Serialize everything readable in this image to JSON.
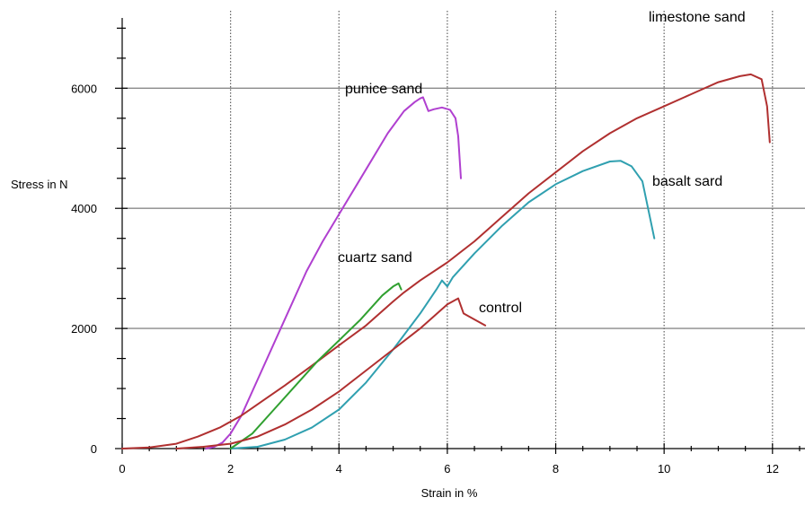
{
  "chart_data": {
    "type": "line",
    "xlabel": "Strain in %",
    "ylabel": "Stress in N",
    "xlim": [
      0,
      12.6
    ],
    "ylim": [
      0,
      7200
    ],
    "x_ticks": [
      0,
      2,
      4,
      6,
      8,
      10,
      12
    ],
    "y_ticks": [
      0,
      2000,
      4000,
      6000
    ],
    "x_tick_labels": [
      "0",
      "2",
      "4",
      "6",
      "8",
      "10",
      "12"
    ],
    "y_tick_labels": [
      "0",
      "2000",
      "4000",
      "6000"
    ],
    "grid": {
      "x_major": "dotted",
      "y_major": "solid"
    },
    "legend": "inline labels next to curves",
    "series": [
      {
        "name": "punice sand",
        "color": "#b040d0",
        "x": [
          1.55,
          1.7,
          1.85,
          2.0,
          2.2,
          2.5,
          2.8,
          3.1,
          3.4,
          3.7,
          4.0,
          4.3,
          4.6,
          4.9,
          5.2,
          5.4,
          5.5,
          5.55,
          5.65,
          5.75,
          5.9,
          6.05,
          6.15,
          6.2,
          6.25
        ],
        "y": [
          0,
          30,
          100,
          250,
          550,
          1150,
          1750,
          2350,
          2950,
          3450,
          3900,
          4350,
          4800,
          5250,
          5620,
          5770,
          5830,
          5850,
          5620,
          5650,
          5680,
          5640,
          5500,
          5200,
          4500
        ]
      },
      {
        "name": "limestone sand",
        "color": "#b03030",
        "x": [
          0,
          0.5,
          1.0,
          1.4,
          1.8,
          2.2,
          2.6,
          3.0,
          3.5,
          4.0,
          4.5,
          5.0,
          5.2,
          5.5,
          6.0,
          6.5,
          7.0,
          7.5,
          8.0,
          8.5,
          9.0,
          9.5,
          10.0,
          10.5,
          11.0,
          11.4,
          11.6,
          11.8,
          11.9,
          11.95
        ],
        "y": [
          0,
          20,
          80,
          200,
          350,
          550,
          800,
          1050,
          1380,
          1720,
          2050,
          2450,
          2600,
          2800,
          3100,
          3450,
          3850,
          4250,
          4600,
          4950,
          5250,
          5500,
          5700,
          5900,
          6100,
          6200,
          6230,
          6150,
          5700,
          5100
        ]
      },
      {
        "name": "basalt sard",
        "color": "#30a0b0",
        "x": [
          2.0,
          2.5,
          3.0,
          3.5,
          4.0,
          4.5,
          5.0,
          5.5,
          5.8,
          5.9,
          6.0,
          6.1,
          6.5,
          7.0,
          7.5,
          8.0,
          8.5,
          9.0,
          9.2,
          9.4,
          9.6,
          9.75,
          9.82
        ],
        "y": [
          0,
          30,
          150,
          350,
          650,
          1100,
          1650,
          2250,
          2650,
          2800,
          2700,
          2850,
          3250,
          3700,
          4100,
          4400,
          4620,
          4780,
          4790,
          4700,
          4450,
          3800,
          3500
        ]
      },
      {
        "name": "cuartz sand",
        "color": "#30a030",
        "x": [
          2.0,
          2.4,
          2.8,
          3.2,
          3.6,
          4.0,
          4.4,
          4.8,
          5.0,
          5.1,
          5.15
        ],
        "y": [
          0,
          250,
          650,
          1050,
          1450,
          1800,
          2150,
          2550,
          2700,
          2750,
          2650
        ]
      },
      {
        "name": "control",
        "color": "#b03030",
        "x": [
          1.0,
          1.5,
          2.0,
          2.5,
          3.0,
          3.5,
          4.0,
          4.5,
          5.0,
          5.5,
          6.0,
          6.2,
          6.3,
          6.5,
          6.7
        ],
        "y": [
          0,
          30,
          80,
          200,
          400,
          650,
          950,
          1300,
          1650,
          2000,
          2400,
          2500,
          2250,
          2150,
          2050
        ]
      }
    ]
  }
}
